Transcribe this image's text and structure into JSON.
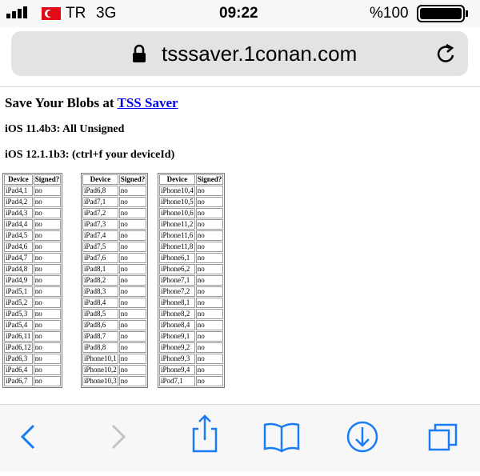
{
  "status_bar": {
    "carrier": "TR",
    "network": "3G",
    "time": "09:22",
    "battery": "%100"
  },
  "address_bar": {
    "url": "tsssaver.1conan.com"
  },
  "content": {
    "title": "Save Your Blobs at",
    "title_link": "TSS Saver",
    "headings": [
      "iOS 11.4b3: All Unsigned",
      "iOS 12.1.1b3: (ctrl+f your deviceId)"
    ],
    "tables": [
      {
        "header": [
          "Device",
          "Signed?"
        ],
        "rows": [
          [
            "iPad4,1",
            "no"
          ],
          [
            "iPad4,2",
            "no"
          ],
          [
            "iPad4,3",
            "no"
          ],
          [
            "iPad4,4",
            "no"
          ],
          [
            "iPad4,5",
            "no"
          ],
          [
            "iPad4,6",
            "no"
          ],
          [
            "iPad4,7",
            "no"
          ],
          [
            "iPad4,8",
            "no"
          ],
          [
            "iPad4,9",
            "no"
          ],
          [
            "iPad5,1",
            "no"
          ],
          [
            "iPad5,2",
            "no"
          ],
          [
            "iPad5,3",
            "no"
          ],
          [
            "iPad5,4",
            "no"
          ],
          [
            "iPad6,11",
            "no"
          ],
          [
            "iPad6,12",
            "no"
          ],
          [
            "iPad6,3",
            "no"
          ],
          [
            "iPad6,4",
            "no"
          ],
          [
            "iPad6,7",
            "no"
          ]
        ]
      },
      {
        "header": [
          "Device",
          "Signed?"
        ],
        "rows": [
          [
            "iPad6,8",
            "no"
          ],
          [
            "iPad7,1",
            "no"
          ],
          [
            "iPad7,2",
            "no"
          ],
          [
            "iPad7,3",
            "no"
          ],
          [
            "iPad7,4",
            "no"
          ],
          [
            "iPad7,5",
            "no"
          ],
          [
            "iPad7,6",
            "no"
          ],
          [
            "iPad8,1",
            "no"
          ],
          [
            "iPad8,2",
            "no"
          ],
          [
            "iPad8,3",
            "no"
          ],
          [
            "iPad8,4",
            "no"
          ],
          [
            "iPad8,5",
            "no"
          ],
          [
            "iPad8,6",
            "no"
          ],
          [
            "iPad8,7",
            "no"
          ],
          [
            "iPad8,8",
            "no"
          ],
          [
            "iPhone10,1",
            "no"
          ],
          [
            "iPhone10,2",
            "no"
          ],
          [
            "iPhone10,3",
            "no"
          ]
        ]
      },
      {
        "header": [
          "Device",
          "Signed?"
        ],
        "rows": [
          [
            "iPhone10,4",
            "no"
          ],
          [
            "iPhone10,5",
            "no"
          ],
          [
            "iPhone10,6",
            "no"
          ],
          [
            "iPhone11,2",
            "no"
          ],
          [
            "iPhone11,6",
            "no"
          ],
          [
            "iPhone11,8",
            "no"
          ],
          [
            "iPhone6,1",
            "no"
          ],
          [
            "iPhone6,2",
            "no"
          ],
          [
            "iPhone7,1",
            "no"
          ],
          [
            "iPhone7,2",
            "no"
          ],
          [
            "iPhone8,1",
            "no"
          ],
          [
            "iPhone8,2",
            "no"
          ],
          [
            "iPhone8,4",
            "no"
          ],
          [
            "iPhone9,1",
            "no"
          ],
          [
            "iPhone9,2",
            "no"
          ],
          [
            "iPhone9,3",
            "no"
          ],
          [
            "iPhone9,4",
            "no"
          ],
          [
            "iPod7,1",
            "no"
          ]
        ]
      }
    ]
  }
}
